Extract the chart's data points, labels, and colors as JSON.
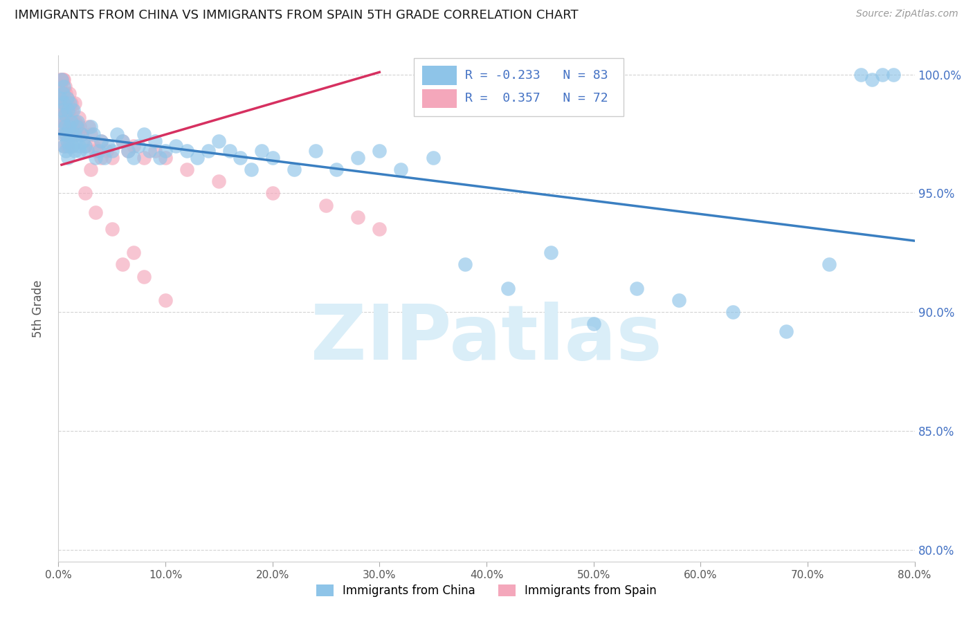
{
  "title": "IMMIGRANTS FROM CHINA VS IMMIGRANTS FROM SPAIN 5TH GRADE CORRELATION CHART",
  "source_text": "Source: ZipAtlas.com",
  "ylabel": "5th Grade",
  "xlim": [
    0.0,
    0.8
  ],
  "ylim": [
    0.795,
    1.008
  ],
  "yticks": [
    0.8,
    0.85,
    0.9,
    0.95,
    1.0
  ],
  "ytick_labels": [
    "80.0%",
    "85.0%",
    "90.0%",
    "95.0%",
    "100.0%"
  ],
  "xticks": [
    0.0,
    0.1,
    0.2,
    0.3,
    0.4,
    0.5,
    0.6,
    0.7,
    0.8
  ],
  "china_R": -0.233,
  "china_N": 83,
  "spain_R": 0.357,
  "spain_N": 72,
  "china_color": "#8ec4e8",
  "spain_color": "#f4a7bb",
  "china_line_color": "#3a7fc1",
  "spain_line_color": "#d63060",
  "watermark": "ZIPatlas",
  "watermark_color": "#daeef8",
  "background_color": "#ffffff",
  "grid_color": "#c8c8c8",
  "title_color": "#1a1a1a",
  "axis_label_color": "#555555",
  "right_yaxis_color": "#4472c4",
  "legend_china_label": "Immigrants from China",
  "legend_spain_label": "Immigrants from Spain",
  "china_line_x0": 0.0,
  "china_line_y0": 0.975,
  "china_line_x1": 0.8,
  "china_line_y1": 0.93,
  "spain_line_x0": 0.003,
  "spain_line_y0": 0.962,
  "spain_line_x1": 0.3,
  "spain_line_y1": 1.001,
  "china_scatter_x": [
    0.002,
    0.003,
    0.003,
    0.004,
    0.004,
    0.004,
    0.005,
    0.005,
    0.005,
    0.006,
    0.006,
    0.007,
    0.007,
    0.008,
    0.008,
    0.009,
    0.009,
    0.01,
    0.01,
    0.011,
    0.012,
    0.012,
    0.013,
    0.014,
    0.015,
    0.015,
    0.016,
    0.017,
    0.018,
    0.019,
    0.02,
    0.022,
    0.023,
    0.025,
    0.027,
    0.03,
    0.033,
    0.035,
    0.038,
    0.04,
    0.043,
    0.046,
    0.05,
    0.055,
    0.06,
    0.065,
    0.07,
    0.075,
    0.08,
    0.085,
    0.09,
    0.095,
    0.1,
    0.11,
    0.12,
    0.13,
    0.14,
    0.15,
    0.16,
    0.17,
    0.18,
    0.19,
    0.2,
    0.22,
    0.24,
    0.26,
    0.28,
    0.3,
    0.32,
    0.35,
    0.38,
    0.42,
    0.46,
    0.5,
    0.54,
    0.58,
    0.63,
    0.68,
    0.72,
    0.75,
    0.76,
    0.77,
    0.78
  ],
  "china_scatter_y": [
    0.99,
    0.985,
    0.998,
    0.975,
    0.992,
    0.98,
    0.97,
    0.988,
    0.995,
    0.978,
    0.983,
    0.968,
    0.975,
    0.99,
    0.972,
    0.985,
    0.965,
    0.978,
    0.97,
    0.988,
    0.98,
    0.975,
    0.97,
    0.985,
    0.968,
    0.975,
    0.972,
    0.978,
    0.98,
    0.97,
    0.968,
    0.975,
    0.972,
    0.97,
    0.968,
    0.978,
    0.975,
    0.965,
    0.968,
    0.972,
    0.965,
    0.97,
    0.968,
    0.975,
    0.972,
    0.968,
    0.965,
    0.97,
    0.975,
    0.968,
    0.972,
    0.965,
    0.968,
    0.97,
    0.968,
    0.965,
    0.968,
    0.972,
    0.968,
    0.965,
    0.96,
    0.968,
    0.965,
    0.96,
    0.968,
    0.96,
    0.965,
    0.968,
    0.96,
    0.965,
    0.92,
    0.91,
    0.925,
    0.895,
    0.91,
    0.905,
    0.9,
    0.892,
    0.92,
    1.0,
    0.998,
    1.0,
    1.0
  ],
  "spain_scatter_x": [
    0.002,
    0.002,
    0.003,
    0.003,
    0.003,
    0.003,
    0.004,
    0.004,
    0.004,
    0.004,
    0.005,
    0.005,
    0.005,
    0.005,
    0.005,
    0.006,
    0.006,
    0.006,
    0.007,
    0.007,
    0.007,
    0.008,
    0.008,
    0.008,
    0.009,
    0.009,
    0.01,
    0.01,
    0.01,
    0.011,
    0.012,
    0.012,
    0.013,
    0.013,
    0.014,
    0.015,
    0.015,
    0.016,
    0.017,
    0.018,
    0.019,
    0.02,
    0.022,
    0.025,
    0.028,
    0.03,
    0.033,
    0.035,
    0.04,
    0.045,
    0.05,
    0.06,
    0.065,
    0.07,
    0.08,
    0.09,
    0.1,
    0.12,
    0.15,
    0.2,
    0.25,
    0.28,
    0.3,
    0.03,
    0.025,
    0.035,
    0.04,
    0.05,
    0.06,
    0.07,
    0.08,
    0.1
  ],
  "spain_scatter_y": [
    0.998,
    0.995,
    0.998,
    0.99,
    0.985,
    0.992,
    0.998,
    0.99,
    0.98,
    0.975,
    0.998,
    0.992,
    0.985,
    0.978,
    0.97,
    0.995,
    0.988,
    0.98,
    0.992,
    0.985,
    0.975,
    0.99,
    0.982,
    0.97,
    0.988,
    0.978,
    0.985,
    0.975,
    0.992,
    0.98,
    0.988,
    0.975,
    0.985,
    0.97,
    0.98,
    0.988,
    0.975,
    0.98,
    0.978,
    0.975,
    0.982,
    0.978,
    0.975,
    0.97,
    0.978,
    0.975,
    0.97,
    0.968,
    0.972,
    0.968,
    0.965,
    0.972,
    0.968,
    0.97,
    0.965,
    0.968,
    0.965,
    0.96,
    0.955,
    0.95,
    0.945,
    0.94,
    0.935,
    0.96,
    0.95,
    0.942,
    0.965,
    0.935,
    0.92,
    0.925,
    0.915,
    0.905
  ]
}
